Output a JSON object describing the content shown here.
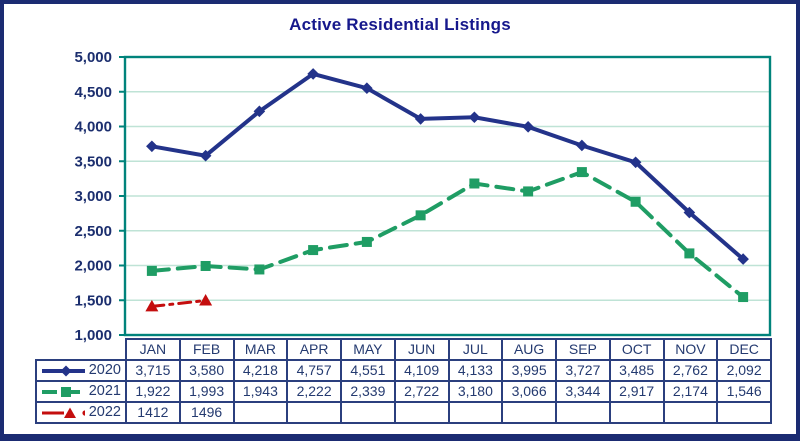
{
  "title": "Active Residential Listings",
  "colors": {
    "frame_border": "#1b2b72",
    "title_text": "#16188c",
    "axis_label_text": "#1b2e6e",
    "table_border": "#2b3f7e",
    "table_text": "#243a70",
    "plot_border": "#00837b",
    "gridline": "#bfe3d6",
    "series_2020": "#23338a",
    "series_2021": "#1f9d64",
    "series_2022": "#c40e0e"
  },
  "chart_data": {
    "type": "line",
    "title": "Active Residential Listings",
    "categories": [
      "JAN",
      "FEB",
      "MAR",
      "APR",
      "MAY",
      "JUN",
      "JUL",
      "AUG",
      "SEP",
      "OCT",
      "NOV",
      "DEC"
    ],
    "series": [
      {
        "name": "2020",
        "color": "#23338a",
        "line_style": "solid",
        "marker": "diamond",
        "values": [
          3715,
          3580,
          4218,
          4757,
          4551,
          4109,
          4133,
          3995,
          3727,
          3485,
          2762,
          2092
        ],
        "display": [
          "3,715",
          "3,580",
          "4,218",
          "4,757",
          "4,551",
          "4,109",
          "4,133",
          "3,995",
          "3,727",
          "3,485",
          "2,762",
          "2,092"
        ]
      },
      {
        "name": "2021",
        "color": "#1f9d64",
        "line_style": "dashed",
        "marker": "square",
        "values": [
          1922,
          1993,
          1943,
          2222,
          2339,
          2722,
          3180,
          3066,
          3344,
          2917,
          2174,
          1546
        ],
        "display": [
          "1,922",
          "1,993",
          "1,943",
          "2,222",
          "2,339",
          "2,722",
          "3,180",
          "3,066",
          "3,344",
          "2,917",
          "2,174",
          "1,546"
        ]
      },
      {
        "name": "2022",
        "color": "#c40e0e",
        "line_style": "dashdot",
        "marker": "triangle",
        "values": [
          1412,
          1496,
          null,
          null,
          null,
          null,
          null,
          null,
          null,
          null,
          null,
          null
        ],
        "display": [
          "1412",
          "1496",
          "",
          "",
          "",
          "",
          "",
          "",
          "",
          "",
          "",
          ""
        ]
      }
    ],
    "ylim": [
      1000,
      5000
    ],
    "ytick_step": 500,
    "yticks": [
      "5,000",
      "4,500",
      "4,000",
      "3,500",
      "3,000",
      "2,500",
      "2,000",
      "1,500",
      "1,000"
    ],
    "grid": true,
    "legend_position": "table-left"
  }
}
